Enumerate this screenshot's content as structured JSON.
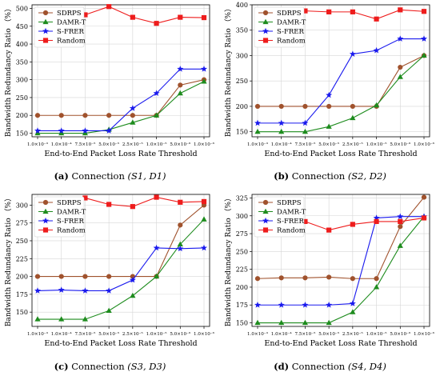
{
  "colors": {
    "SDRPS": "#a0522d",
    "DAMR-T": "#1e8c1e",
    "S-FRER": "#1a1aee",
    "Random": "#ee1c1c"
  },
  "captions": [
    {
      "tag": "(a)",
      "text": "Connection",
      "conn": "(S1, D1)"
    },
    {
      "tag": "(b)",
      "text": "Connection",
      "conn": "(S2, D2)"
    },
    {
      "tag": "(c)",
      "text": "Connection",
      "conn": "(S3, D3)"
    },
    {
      "tag": "(d)",
      "text": "Connection",
      "conn": "(S4, D4)"
    }
  ],
  "chart_data": [
    {
      "type": "line",
      "xlabel": "End-to-End Packet Loss Rate Threshold",
      "ylabel": "Bandwidth Redundancy Ratio （%）",
      "categories": [
        "1.0×10⁻³",
        "1.0×10⁻⁴",
        "7.5×10⁻⁵",
        "5.0×10⁻⁵",
        "2.5×10⁻⁵",
        "1.0×10⁻⁵",
        "5.0×10⁻⁶",
        "1.0×10⁻⁶"
      ],
      "ylim": [
        140,
        510
      ],
      "yticks": [
        150,
        200,
        250,
        300,
        350,
        400,
        450,
        500
      ],
      "legend": "upper-left",
      "grid": true,
      "series": [
        {
          "name": "SDRPS",
          "marker": "circle",
          "values": [
            200,
            200,
            200,
            200,
            200,
            200,
            285,
            300
          ]
        },
        {
          "name": "DAMR-T",
          "marker": "triangle",
          "values": [
            150,
            150,
            150,
            160,
            180,
            200,
            262,
            295
          ]
        },
        {
          "name": "S-FRER",
          "marker": "star",
          "values": [
            157,
            157,
            157,
            157,
            220,
            262,
            330,
            330
          ]
        },
        {
          "name": "Random",
          "marker": "square",
          "values": [
            null,
            null,
            482,
            505,
            475,
            458,
            475,
            474
          ]
        }
      ]
    },
    {
      "type": "line",
      "xlabel": "End-to-End Packet Loss Rate Threshold",
      "ylabel": "Bandwidth Redundancy Ratio （%）",
      "categories": [
        "1.0×10⁻³",
        "1.0×10⁻⁴",
        "7.5×10⁻⁵",
        "5.0×10⁻⁵",
        "2.5×10⁻⁵",
        "1.0×10⁻⁵",
        "5.0×10⁻⁶",
        "1.0×10⁻⁶"
      ],
      "ylim": [
        140,
        400
      ],
      "yticks": [
        150,
        200,
        250,
        300,
        350,
        400
      ],
      "legend": "upper-left",
      "grid": true,
      "series": [
        {
          "name": "SDRPS",
          "marker": "circle",
          "values": [
            200,
            200,
            200,
            200,
            200,
            200,
            277,
            300
          ]
        },
        {
          "name": "DAMR-T",
          "marker": "triangle",
          "values": [
            150,
            150,
            150,
            160,
            177,
            202,
            258,
            300
          ]
        },
        {
          "name": "S-FRER",
          "marker": "star",
          "values": [
            167,
            167,
            167,
            222,
            303,
            310,
            333,
            333
          ]
        },
        {
          "name": "Random",
          "marker": "square",
          "values": [
            null,
            null,
            388,
            386,
            386,
            372,
            390,
            387
          ]
        }
      ]
    },
    {
      "type": "line",
      "xlabel": "End-to-End Packet Loss Rate Threshold",
      "ylabel": "Bandwidth Redundancy Ratio （%）",
      "categories": [
        "1.0×10⁻³",
        "1.0×10⁻⁴",
        "7.5×10⁻⁵",
        "5.0×10⁻⁵",
        "2.5×10⁻⁵",
        "1.0×10⁻⁵",
        "5.0×10⁻⁶",
        "1.0×10⁻⁶"
      ],
      "ylim": [
        130,
        315
      ],
      "yticks": [
        150,
        175,
        200,
        225,
        250,
        275,
        300
      ],
      "legend": "upper-left",
      "grid": true,
      "series": [
        {
          "name": "SDRPS",
          "marker": "circle",
          "values": [
            200,
            200,
            200,
            200,
            200,
            200,
            272,
            300
          ]
        },
        {
          "name": "DAMR-T",
          "marker": "triangle",
          "values": [
            140,
            140,
            140,
            152,
            173,
            200,
            245,
            280
          ]
        },
        {
          "name": "S-FRER",
          "marker": "star",
          "values": [
            180,
            181,
            180,
            180,
            195,
            240,
            239,
            240
          ]
        },
        {
          "name": "Random",
          "marker": "square",
          "values": [
            null,
            null,
            310,
            301,
            298,
            311,
            304,
            305
          ]
        }
      ]
    },
    {
      "type": "line",
      "xlabel": "End-to-End Packet Loss Rate Threshold",
      "ylabel": "Bandwidth Redundancy Ratio （%）",
      "categories": [
        "1.0×10⁻³",
        "1.0×10⁻⁴",
        "7.5×10⁻⁵",
        "5.0×10⁻⁵",
        "2.5×10⁻⁵",
        "1.0×10⁻⁵",
        "5.0×10⁻⁶",
        "1.0×10⁻⁶"
      ],
      "ylim": [
        145,
        330
      ],
      "yticks": [
        150,
        175,
        200,
        225,
        250,
        275,
        300,
        325
      ],
      "legend": "upper-left",
      "grid": true,
      "series": [
        {
          "name": "SDRPS",
          "marker": "circle",
          "values": [
            212,
            213,
            213,
            214,
            212,
            212,
            285,
            326
          ]
        },
        {
          "name": "DAMR-T",
          "marker": "triangle",
          "values": [
            150,
            150,
            150,
            150,
            165,
            200,
            258,
            299
          ]
        },
        {
          "name": "S-FRER",
          "marker": "star",
          "values": [
            175,
            175,
            175,
            175,
            177,
            297,
            299,
            299
          ]
        },
        {
          "name": "Random",
          "marker": "square",
          "values": [
            null,
            null,
            292,
            280,
            288,
            292,
            292,
            297
          ]
        }
      ]
    }
  ]
}
